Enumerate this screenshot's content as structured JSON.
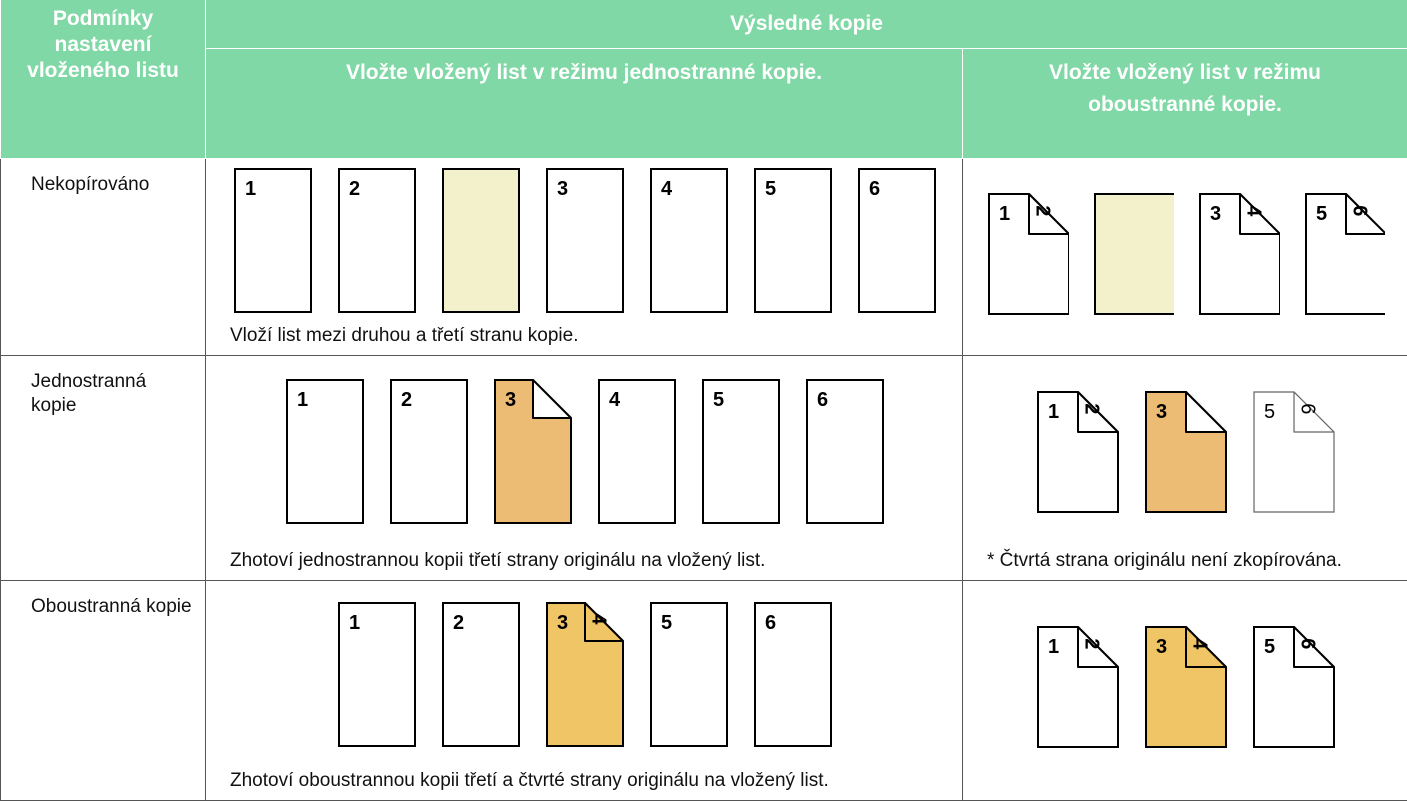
{
  "header": {
    "condition": "Podmínky nastavení vloženého listu",
    "result": "Výsledné kopie",
    "one_sided": "Vložte vložený list v režimu jednostranné kopie.",
    "two_sided": "Vložte vložený list v režimu oboustranné kopie."
  },
  "rows": [
    {
      "condition": "Nekopírováno",
      "one_sided": {
        "sheets": [
          {
            "front": "1"
          },
          {
            "front": "2"
          },
          {
            "fill": "#f3f1cb"
          },
          {
            "front": "3"
          },
          {
            "front": "4"
          },
          {
            "front": "5"
          },
          {
            "front": "6"
          }
        ],
        "note": "Vloží list mezi druhou a třetí stranu kopie."
      },
      "two_sided": {
        "sheets": [
          {
            "front": "1",
            "back": "2"
          },
          {
            "fill": "#f3f1cb"
          },
          {
            "front": "3",
            "back": "4"
          },
          {
            "front": "5",
            "back": "6"
          }
        ]
      }
    },
    {
      "condition": "Jednostranná kopie",
      "one_sided": {
        "sheets": [
          {
            "front": "1"
          },
          {
            "front": "2"
          },
          {
            "front": "3",
            "fold": true,
            "fill": "#edbc74"
          },
          {
            "front": "4"
          },
          {
            "front": "5"
          },
          {
            "front": "6"
          }
        ],
        "note": "Zhotoví jednostrannou kopii třetí strany originálu na vložený list."
      },
      "two_sided": {
        "sheets": [
          {
            "front": "1",
            "back": "2"
          },
          {
            "front": "3",
            "fold": true,
            "fill": "#edbc74"
          },
          {
            "front": "5",
            "back": "6",
            "light": true
          }
        ],
        "note": "* Čtvrtá strana originálu není zkopírována."
      }
    },
    {
      "condition": "Oboustranná kopie",
      "one_sided": {
        "sheets": [
          {
            "front": "1"
          },
          {
            "front": "2"
          },
          {
            "front": "3",
            "back": "4",
            "fill": "#f0c566"
          },
          {
            "front": "5"
          },
          {
            "front": "6"
          }
        ],
        "note": "Zhotoví oboustrannou kopii třetí a čtvrté strany originálu na vložený list."
      },
      "two_sided": {
        "sheets": [
          {
            "front": "1",
            "back": "2"
          },
          {
            "front": "3",
            "back": "4",
            "fill": "#f0c566"
          },
          {
            "front": "5",
            "back": "6"
          }
        ]
      }
    }
  ]
}
